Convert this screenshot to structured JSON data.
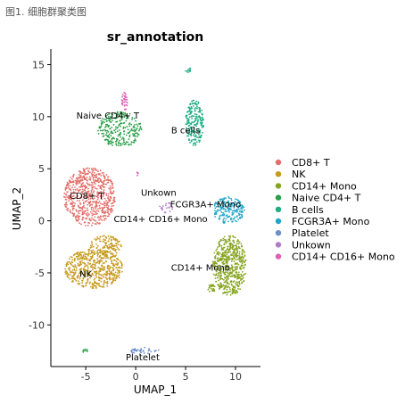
{
  "figure_caption": "图1. 细胞群聚类图",
  "chart_data": {
    "type": "scatter",
    "title": "sr_annotation",
    "xlabel": "UMAP_1",
    "ylabel": "UMAP_2",
    "xlim": [
      -8.5,
      12.5
    ],
    "ylim": [
      -14,
      16.5
    ],
    "xticks": [
      -5,
      0,
      5,
      10
    ],
    "yticks": [
      -10,
      -5,
      0,
      5,
      10,
      15
    ],
    "grid": false,
    "legend_position": "right",
    "series": [
      {
        "name": "CD8+ T",
        "color": "#E36E68",
        "label": "CD8+ T",
        "label_at": [
          -4.9,
          2.1
        ],
        "clusters": [
          {
            "cx": -4.6,
            "cy": 2.3,
            "rx": 2.6,
            "ry": 2.8,
            "n": 650
          }
        ]
      },
      {
        "name": "NK",
        "color": "#C79A1C",
        "label": "NK",
        "label_at": [
          -5.0,
          -5.4
        ],
        "clusters": [
          {
            "cx": -4.2,
            "cy": -4.6,
            "rx": 2.9,
            "ry": 1.9,
            "n": 520
          },
          {
            "cx": -3.0,
            "cy": -2.5,
            "rx": 1.6,
            "ry": 1.1,
            "n": 140
          }
        ]
      },
      {
        "name": "CD14+ Mono",
        "color": "#86A420",
        "label": "CD14+ Mono",
        "label_at": [
          6.5,
          -4.8
        ],
        "clusters": [
          {
            "cx": 9.4,
            "cy": -4.3,
            "rx": 1.7,
            "ry": 2.9,
            "n": 560
          },
          {
            "cx": 7.6,
            "cy": -6.5,
            "rx": 0.4,
            "ry": 0.4,
            "n": 25
          }
        ]
      },
      {
        "name": "Naive CD4+ T",
        "color": "#2AA048",
        "label": "Naive CD4+ T",
        "label_at": [
          -2.8,
          9.8
        ],
        "clusters": [
          {
            "cx": -1.6,
            "cy": 8.8,
            "rx": 2.2,
            "ry": 1.7,
            "n": 260
          },
          {
            "cx": -5.1,
            "cy": -12.5,
            "rx": 0.3,
            "ry": 0.3,
            "n": 10
          }
        ]
      },
      {
        "name": "B cells",
        "color": "#1EAE84",
        "label": "B cells",
        "label_at": [
          5.0,
          8.4
        ],
        "clusters": [
          {
            "cx": 5.9,
            "cy": 9.4,
            "rx": 0.9,
            "ry": 2.2,
            "n": 210
          },
          {
            "cx": 5.3,
            "cy": 14.5,
            "rx": 0.35,
            "ry": 0.25,
            "n": 12
          }
        ]
      },
      {
        "name": "FCGR3A+ Mono",
        "color": "#21A6C8",
        "label": "FCGR3A+ Mono",
        "label_at": [
          7.0,
          1.3
        ],
        "clusters": [
          {
            "cx": 9.3,
            "cy": 1.0,
            "rx": 1.6,
            "ry": 1.3,
            "n": 200
          }
        ]
      },
      {
        "name": "Platelet",
        "color": "#6B8FCB",
        "label": "Platelet",
        "label_at": [
          0.7,
          -13.4
        ],
        "clusters": [
          {
            "cx": 0.9,
            "cy": -12.5,
            "rx": 1.5,
            "ry": 0.35,
            "n": 35
          }
        ]
      },
      {
        "name": "Unkown",
        "color": "#B37BCB",
        "label": "Unkown",
        "label_at": [
          2.3,
          2.4
        ],
        "clusters": [
          {
            "cx": 3.0,
            "cy": 1.3,
            "rx": 0.7,
            "ry": 0.5,
            "n": 20
          }
        ]
      },
      {
        "name": "CD14+ CD16+ Mono",
        "color": "#E05FB5",
        "label": "CD14+ CD16+ Mono",
        "label_at": [
          2.5,
          -0.1
        ],
        "clusters": [
          {
            "cx": -1.1,
            "cy": 11.5,
            "rx": 0.3,
            "ry": 0.9,
            "n": 35
          },
          {
            "cx": 0.2,
            "cy": 4.5,
            "rx": 0.2,
            "ry": 0.2,
            "n": 4
          }
        ]
      }
    ]
  }
}
